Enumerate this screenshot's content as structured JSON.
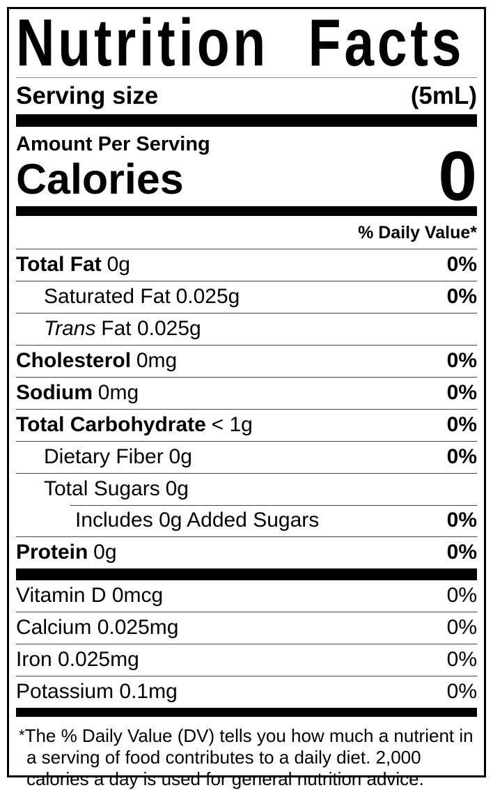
{
  "title": "Nutrition Facts",
  "serving_row": {
    "label": "Serving size",
    "value": "(5mL)"
  },
  "amount_per_serving_label": "Amount Per Serving",
  "calories_row": {
    "label": "Calories",
    "value": "0"
  },
  "daily_value_header": "% Daily Value*",
  "nutrient_rows": [
    {
      "name": "Total Fat",
      "amount": "0g",
      "dv": "0%"
    },
    {
      "name": "Saturated Fat",
      "amount": "0.025g",
      "dv": "0%"
    },
    {
      "name": "Trans",
      "amount": "Fat 0.025g",
      "dv": ""
    },
    {
      "name": "Cholesterol",
      "amount": "0mg",
      "dv": "0%"
    },
    {
      "name": "Sodium",
      "amount": "0mg",
      "dv": "0%"
    },
    {
      "name": "Total Carbohydrate",
      "amount": "< 1g",
      "dv": "0%"
    },
    {
      "name": "Dietary Fiber",
      "amount": "0g",
      "dv": "0%"
    },
    {
      "name": "Total Sugars",
      "amount": "0g",
      "dv": ""
    },
    {
      "name": "Includes 0g Added Sugars",
      "amount": "",
      "dv": "0%"
    },
    {
      "name": "Protein",
      "amount": "0g",
      "dv": "0%"
    }
  ],
  "micronutrient_rows": [
    {
      "name": "Vitamin D 0mcg",
      "dv": "0%"
    },
    {
      "name": "Calcium 0.025mg",
      "dv": "0%"
    },
    {
      "name": "Iron 0.025mg",
      "dv": "0%"
    },
    {
      "name": "Potassium 0.1mg",
      "dv": "0%"
    }
  ],
  "footnote": {
    "asterisk": "*",
    "text": "The % Daily Value (DV) tells you how much a nutrient in a serving of food contributes to a daily diet. 2,000 calories a day is used for general nutrition advice."
  },
  "colors": {
    "ink": "#000000",
    "background": "#ffffff",
    "hairline": "#444444"
  }
}
